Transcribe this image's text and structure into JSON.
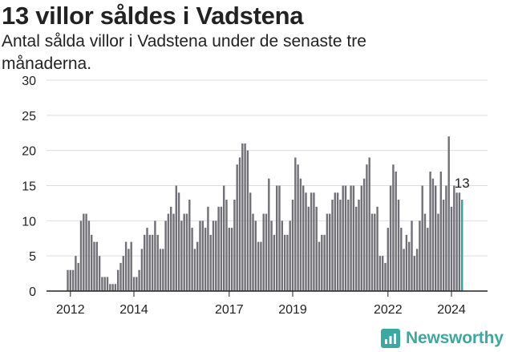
{
  "colors": {
    "bar": "#707076",
    "highlight": "#2ba3a1",
    "grid": "#dddddd",
    "brand": "#3aa9a0"
  },
  "brand": {
    "name": "Newsworthy",
    "icon": "chart-logo-icon"
  },
  "chart_data": {
    "type": "bar",
    "title": "13 villor såldes i Vadstena",
    "subtitle": "Antal sålda villor i Vadstena under de senaste tre månaderna.",
    "xlabel": "",
    "ylabel": "",
    "ylim": [
      0,
      30
    ],
    "yticks": [
      "0",
      "5",
      "10",
      "15",
      "20",
      "25",
      "30"
    ],
    "xticks": [
      {
        "label": "2012",
        "index": 1
      },
      {
        "label": "2014",
        "index": 25
      },
      {
        "label": "2017",
        "index": 61
      },
      {
        "label": "2019",
        "index": 85
      },
      {
        "label": "2022",
        "index": 121
      },
      {
        "label": "2024",
        "index": 145
      }
    ],
    "grid": true,
    "highlight_label": "13",
    "values": [
      3,
      3,
      3,
      5,
      4,
      10,
      11,
      11,
      10,
      8,
      7,
      7,
      5,
      2,
      2,
      2,
      1,
      1,
      1,
      3,
      4,
      5,
      7,
      6,
      7,
      2,
      2,
      3,
      6,
      8,
      9,
      8,
      8,
      10,
      8,
      6,
      6,
      10,
      11,
      12,
      11,
      15,
      14,
      10,
      11,
      11,
      13,
      9,
      6,
      7,
      10,
      10,
      9,
      12,
      8,
      10,
      10,
      12,
      12,
      15,
      13,
      9,
      9,
      13,
      18,
      19,
      21,
      21,
      20,
      14,
      11,
      10,
      7,
      7,
      11,
      11,
      16,
      10,
      8,
      15,
      15,
      10,
      8,
      8,
      10,
      13,
      19,
      18,
      16,
      15,
      14,
      12,
      14,
      14,
      12,
      7,
      8,
      8,
      11,
      11,
      13,
      14,
      14,
      13,
      15,
      15,
      13,
      15,
      15,
      12,
      13,
      15,
      16,
      18,
      19,
      11,
      11,
      12,
      5,
      5,
      4,
      9,
      15,
      18,
      17,
      13,
      9,
      6,
      8,
      7,
      10,
      5,
      6,
      10,
      15,
      11,
      9,
      17,
      16,
      15,
      11,
      17,
      13,
      15,
      22,
      12,
      15,
      14,
      14,
      13
    ]
  }
}
